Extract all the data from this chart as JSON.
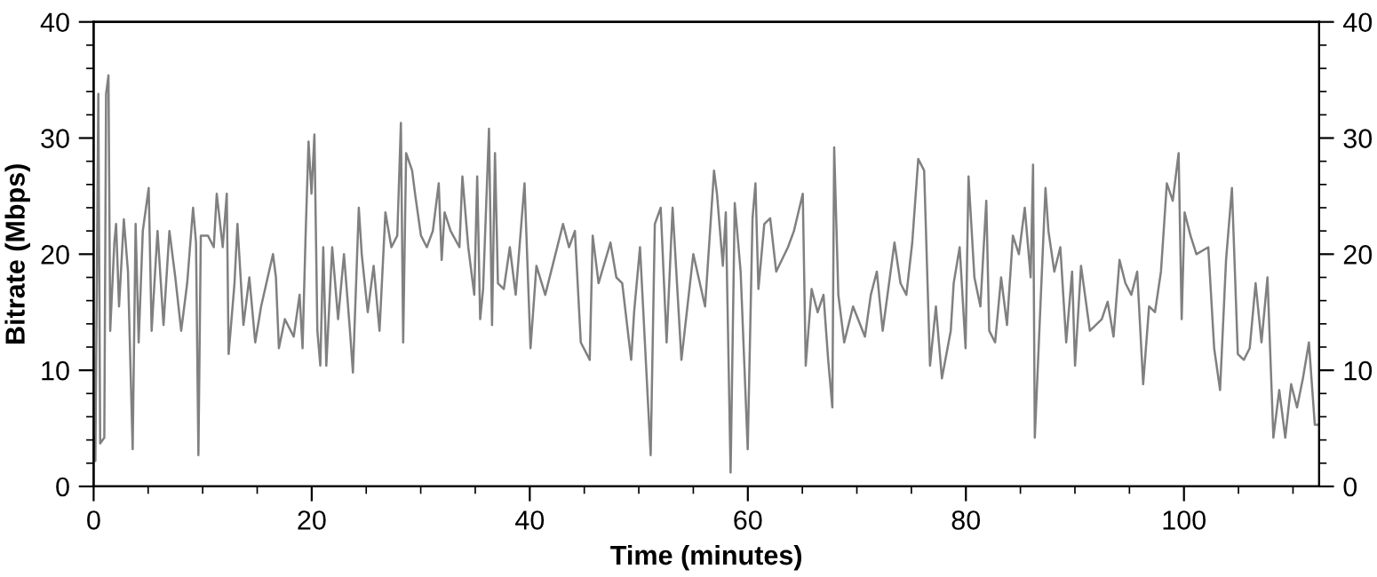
{
  "chart_data": {
    "type": "line",
    "xlabel": "Time (minutes)",
    "ylabel": "Bitrate (Mbps)",
    "xlim": [
      0,
      112.4
    ],
    "ylim": [
      0,
      40
    ],
    "y2lim": [
      0,
      40
    ],
    "xticks": [
      0,
      {
        "value": 5,
        "label": null
      },
      {
        "value": 10,
        "label": null
      },
      {
        "value": 15,
        "label": null
      },
      20,
      {
        "value": 25,
        "label": null
      },
      {
        "value": 30,
        "label": null
      },
      {
        "value": 35,
        "label": null
      },
      40,
      {
        "value": 45,
        "label": null
      },
      {
        "value": 50,
        "label": null
      },
      {
        "value": 55,
        "label": null
      },
      60,
      {
        "value": 65,
        "label": null
      },
      {
        "value": 70,
        "label": null
      },
      {
        "value": 75,
        "label": null
      },
      80,
      {
        "value": 85,
        "label": null
      },
      {
        "value": 90,
        "label": null
      },
      {
        "value": 95,
        "label": null
      },
      100,
      {
        "value": 105,
        "label": null
      },
      {
        "value": 110,
        "label": null
      }
    ],
    "yticks": [
      0,
      {
        "value": 2,
        "label": null
      },
      {
        "value": 4,
        "label": null
      },
      {
        "value": 6,
        "label": null
      },
      {
        "value": 8,
        "label": null
      },
      10,
      {
        "value": 12,
        "label": null
      },
      {
        "value": 14,
        "label": null
      },
      {
        "value": 16,
        "label": null
      },
      {
        "value": 18,
        "label": null
      },
      20,
      {
        "value": 22,
        "label": null
      },
      {
        "value": 24,
        "label": null
      },
      {
        "value": 26,
        "label": null
      },
      {
        "value": 28,
        "label": null
      },
      30,
      {
        "value": 32,
        "label": null
      },
      {
        "value": 34,
        "label": null
      },
      {
        "value": 36,
        "label": null
      },
      {
        "value": 38,
        "label": null
      },
      40
    ],
    "y2ticks": [
      0,
      {
        "value": 2,
        "label": null
      },
      {
        "value": 4,
        "label": null
      },
      {
        "value": 6,
        "label": null
      },
      {
        "value": 8,
        "label": null
      },
      10,
      {
        "value": 12,
        "label": null
      },
      {
        "value": 14,
        "label": null
      },
      {
        "value": 16,
        "label": null
      },
      {
        "value": 18,
        "label": null
      },
      20,
      {
        "value": 22,
        "label": null
      },
      {
        "value": 24,
        "label": null
      },
      {
        "value": 26,
        "label": null
      },
      {
        "value": 28,
        "label": null
      },
      30,
      {
        "value": 32,
        "label": null
      },
      {
        "value": 34,
        "label": null
      },
      {
        "value": 36,
        "label": null
      },
      {
        "value": 38,
        "label": null
      },
      40
    ],
    "grid": false,
    "marker": "none",
    "line_style": "solid",
    "series": [
      {
        "color": "#808080",
        "x": [
          0,
          0.16,
          0.43,
          0.6,
          0.98,
          1.14,
          1.36,
          1.52,
          1.9,
          2.06,
          2.33,
          2.77,
          3.15,
          3.58,
          3.85,
          4.13,
          4.51,
          5.05,
          5.32,
          5.86,
          6.41,
          6.95,
          7.49,
          8.03,
          8.58,
          9.12,
          9.39,
          9.61,
          9.83,
          10.48,
          11.02,
          11.29,
          11.84,
          12.21,
          12.38,
          12.92,
          13.19,
          13.74,
          14.28,
          14.82,
          15.36,
          16.45,
          16.72,
          16.99,
          17.54,
          18.35,
          18.89,
          19.16,
          19.44,
          19.71,
          19.98,
          20.25,
          20.52,
          20.79,
          21.06,
          21.34,
          21.88,
          22.42,
          22.96,
          23.51,
          23.78,
          24.32,
          24.59,
          25.14,
          25.68,
          26.22,
          26.76,
          27.31,
          27.85,
          28.18,
          28.39,
          28.66,
          29.21,
          29.48,
          30.02,
          30.56,
          31.11,
          31.65,
          31.92,
          32.19,
          32.74,
          33.55,
          33.82,
          34.36,
          34.91,
          35.18,
          35.45,
          35.72,
          36.26,
          36.54,
          36.81,
          37.08,
          37.62,
          38.17,
          38.71,
          39.52,
          40.07,
          40.61,
          41.42,
          43.05,
          43.6,
          44.14,
          44.68,
          45.5,
          45.77,
          46.31,
          47.4,
          47.94,
          48.48,
          49.3,
          49.57,
          50.11,
          51.09,
          51.47,
          52.01,
          52.55,
          53.1,
          53.91,
          55,
          56.08,
          56.9,
          57.17,
          57.71,
          57.98,
          58.42,
          58.8,
          59.34,
          59.99,
          60.43,
          60.7,
          60.97,
          61.51,
          62.05,
          62.6,
          63.68,
          64.23,
          65.04,
          65.31,
          65.85,
          66.4,
          66.94,
          67.37,
          67.75,
          67.92,
          68.3,
          68.84,
          69.65,
          70.74,
          71.28,
          71.83,
          72.37,
          73.45,
          74,
          74.54,
          75.08,
          75.63,
          76.17,
          76.71,
          77.25,
          77.8,
          78.61,
          78.88,
          79.43,
          79.97,
          80.24,
          80.78,
          81.33,
          81.87,
          82.14,
          82.68,
          83.23,
          83.77,
          84.31,
          84.86,
          85.4,
          85.94,
          86.16,
          86.32,
          86.76,
          87.3,
          87.57,
          88.11,
          88.66,
          89.2,
          89.74,
          90.01,
          90.56,
          91.37,
          92.46,
          93,
          93.54,
          94.09,
          94.63,
          95.17,
          95.71,
          96.26,
          96.8,
          97.34,
          97.89,
          98.43,
          98.97,
          99.51,
          99.79,
          100.06,
          100.6,
          101.14,
          102.23,
          102.77,
          103.31,
          103.86,
          104.4,
          104.94,
          105.49,
          106.03,
          106.57,
          107.11,
          107.66,
          108.2,
          108.74,
          109.29,
          109.83,
          110.37,
          110.91,
          111.46,
          112,
          112.38
        ],
        "values": [
          4.2,
          2.2,
          33.8,
          3.7,
          4.2,
          33.8,
          35.4,
          13.4,
          21,
          22.6,
          15.5,
          23,
          18.5,
          3.2,
          22.6,
          12.4,
          22,
          25.7,
          13.4,
          22,
          13.9,
          22,
          18,
          13.4,
          17.5,
          24,
          21,
          2.7,
          21.6,
          21.6,
          20.6,
          25.2,
          20.6,
          25.2,
          11.4,
          17.5,
          22.6,
          13.9,
          18,
          12.4,
          15.5,
          20,
          18,
          11.9,
          14.4,
          12.9,
          16.5,
          11.9,
          21.6,
          29.7,
          25.2,
          30.3,
          13.4,
          10.4,
          20.6,
          10.4,
          20.6,
          14.4,
          20,
          13.4,
          9.8,
          24,
          20,
          15,
          19,
          13.4,
          23.6,
          20.6,
          21.6,
          31.3,
          12.4,
          28.7,
          27.2,
          25.2,
          21.6,
          20.6,
          22,
          26.1,
          19.5,
          23.6,
          22,
          20.6,
          26.7,
          20.6,
          16.5,
          26.7,
          14.4,
          17,
          30.8,
          13.9,
          28.7,
          17.5,
          17,
          20.6,
          16.5,
          26.1,
          11.9,
          19,
          16.5,
          22.6,
          20.6,
          22,
          12.4,
          10.9,
          21.6,
          17.5,
          21,
          18,
          17.5,
          10.9,
          15,
          20.6,
          2.7,
          22.6,
          24,
          12.4,
          24,
          10.9,
          20,
          15.5,
          27.2,
          25.2,
          19,
          23.6,
          1.2,
          24.4,
          18.5,
          3.2,
          23.1,
          26.1,
          17,
          22.6,
          23.1,
          18.5,
          20.6,
          22,
          25.2,
          10.4,
          17,
          15,
          16.5,
          10.9,
          6.8,
          29.2,
          16.5,
          12.4,
          15.5,
          12.9,
          16.5,
          18.5,
          13.4,
          21,
          17.5,
          16.5,
          21,
          28.2,
          27.2,
          10.4,
          15.5,
          9.3,
          13.4,
          17.5,
          20.6,
          11.9,
          26.7,
          18,
          15.5,
          24.6,
          13.4,
          12.4,
          18,
          13.9,
          21.6,
          20,
          24,
          18,
          27.7,
          4.2,
          13.9,
          25.7,
          22,
          18.5,
          20.6,
          12.4,
          18.5,
          10.4,
          19,
          13.4,
          14.4,
          15.9,
          12.9,
          19.5,
          17.5,
          16.5,
          18.5,
          8.8,
          15.5,
          15,
          18.5,
          26.1,
          24.6,
          28.7,
          14.4,
          23.6,
          21.6,
          20,
          20.6,
          11.9,
          8.3,
          19.5,
          25.7,
          11.4,
          10.9,
          11.9,
          17.5,
          12.4,
          18,
          4.2,
          8.3,
          4.2,
          8.8,
          6.8,
          9.3,
          12.4,
          5.3,
          5.3
        ]
      }
    ]
  }
}
